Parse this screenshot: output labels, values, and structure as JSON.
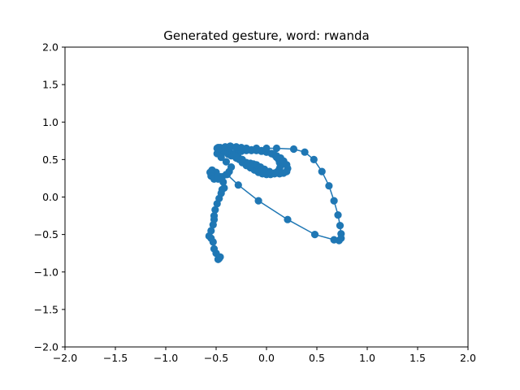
{
  "chart_data": {
    "type": "line",
    "title": "Generated gesture, word: rwanda",
    "xlabel": "",
    "ylabel": "",
    "xlim": [
      -2.0,
      2.0
    ],
    "ylim": [
      -2.0,
      2.0
    ],
    "x_ticks": [
      -2.0,
      -1.5,
      -1.0,
      -0.5,
      0.0,
      0.5,
      1.0,
      1.5,
      2.0
    ],
    "y_ticks": [
      -2.0,
      -1.5,
      -1.0,
      -0.5,
      0.0,
      0.5,
      1.0,
      1.5,
      2.0
    ],
    "x_tick_labels": [
      "−2.0",
      "−1.5",
      "−1.0",
      "−0.5",
      "0.0",
      "0.5",
      "1.0",
      "1.5",
      "2.0"
    ],
    "y_tick_labels": [
      "−2.0",
      "−1.5",
      "−1.0",
      "−0.5",
      "0.0",
      "0.5",
      "1.0",
      "1.5",
      "2.0"
    ],
    "grid": false,
    "color": "#1f77b4",
    "marker": "circle",
    "series": [
      {
        "x": [
          -0.48,
          -0.48,
          -0.47,
          -0.46,
          -0.5,
          -0.52,
          -0.53,
          -0.55,
          -0.57,
          -0.55,
          -0.53,
          -0.52,
          -0.52,
          -0.51,
          -0.49,
          -0.47,
          -0.45,
          -0.44,
          -0.42,
          -0.43,
          -0.46,
          -0.5,
          -0.54,
          -0.56,
          -0.55,
          -0.52,
          -0.48,
          -0.44,
          -0.4,
          -0.37,
          -0.35,
          -0.4,
          -0.45,
          -0.49,
          -0.48,
          -0.45,
          -0.41,
          -0.36,
          -0.3,
          -0.25,
          -0.2,
          -0.15,
          -0.1,
          -0.05,
          0.0,
          0.05,
          0.08,
          0.1,
          0.12,
          0.13,
          0.14,
          0.13,
          0.11,
          0.08,
          0.04,
          0.0,
          -0.04,
          -0.08,
          -0.12,
          -0.16,
          -0.2,
          -0.24,
          -0.27,
          -0.3,
          -0.35,
          -0.38,
          -0.4,
          -0.42,
          -0.44,
          -0.46,
          -0.48,
          -0.49,
          -0.46,
          -0.43,
          -0.39,
          -0.35,
          -0.3,
          -0.25,
          -0.2,
          -0.15,
          -0.1,
          -0.05,
          0.0,
          0.05,
          0.1,
          0.14,
          0.17,
          0.2,
          0.21,
          0.2,
          0.17,
          0.13,
          0.08,
          0.03,
          -0.02,
          -0.06,
          -0.1,
          -0.13,
          -0.16,
          -0.2,
          -0.24,
          -0.28,
          -0.31,
          -0.34,
          -0.37,
          -0.39,
          -0.41,
          -0.43,
          -0.46,
          -0.48,
          -0.46,
          -0.41,
          -0.36,
          -0.3,
          -0.25,
          -0.2,
          -0.1,
          0.0,
          0.1,
          0.27,
          0.38,
          0.47,
          0.55,
          0.62,
          0.67,
          0.71,
          0.73,
          0.74,
          0.74,
          0.72,
          0.67,
          0.48,
          0.21,
          -0.08,
          -0.28,
          -0.39
        ],
        "y": [
          -0.83,
          -0.83,
          -0.82,
          -0.8,
          -0.75,
          -0.69,
          -0.6,
          -0.55,
          -0.52,
          -0.45,
          -0.37,
          -0.3,
          -0.25,
          -0.17,
          -0.09,
          -0.02,
          0.05,
          0.1,
          0.12,
          0.2,
          0.27,
          0.33,
          0.36,
          0.33,
          0.28,
          0.24,
          0.24,
          0.27,
          0.3,
          0.34,
          0.4,
          0.47,
          0.53,
          0.58,
          0.61,
          0.62,
          0.6,
          0.59,
          0.6,
          0.61,
          0.62,
          0.63,
          0.63,
          0.62,
          0.6,
          0.58,
          0.56,
          0.53,
          0.5,
          0.46,
          0.42,
          0.38,
          0.34,
          0.31,
          0.3,
          0.3,
          0.31,
          0.33,
          0.36,
          0.39,
          0.42,
          0.46,
          0.5,
          0.52,
          0.55,
          0.57,
          0.6,
          0.62,
          0.64,
          0.65,
          0.65,
          0.65,
          0.65,
          0.64,
          0.66,
          0.67,
          0.66,
          0.64,
          0.63,
          0.62,
          0.62,
          0.61,
          0.6,
          0.58,
          0.55,
          0.52,
          0.48,
          0.43,
          0.38,
          0.34,
          0.32,
          0.31,
          0.32,
          0.34,
          0.37,
          0.4,
          0.43,
          0.44,
          0.45,
          0.46,
          0.5,
          0.53,
          0.55,
          0.57,
          0.59,
          0.61,
          0.62,
          0.63,
          0.65,
          0.66,
          0.66,
          0.67,
          0.68,
          0.67,
          0.66,
          0.65,
          0.65,
          0.65,
          0.65,
          0.64,
          0.6,
          0.5,
          0.34,
          0.15,
          -0.05,
          -0.24,
          -0.38,
          -0.49,
          -0.55,
          -0.58,
          -0.57,
          -0.5,
          -0.3,
          -0.05,
          0.16,
          0.3
        ]
      }
    ]
  }
}
